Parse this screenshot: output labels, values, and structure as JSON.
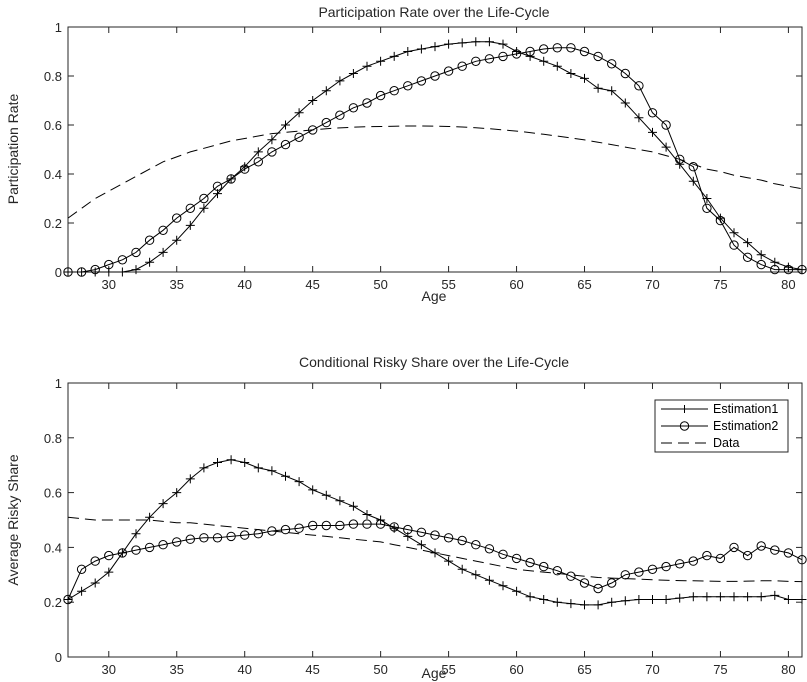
{
  "chart_data": [
    {
      "type": "line",
      "title": "Participation Rate over the Life-Cycle",
      "xlabel": "Age",
      "ylabel": "Participation Rate",
      "xlim": [
        27,
        81
      ],
      "ylim": [
        0,
        1
      ],
      "xticks": [
        30,
        35,
        40,
        45,
        50,
        55,
        60,
        65,
        70,
        75,
        80
      ],
      "yticks": [
        0,
        0.2,
        0.4,
        0.6,
        0.8,
        1
      ],
      "ytick_labels": [
        "0",
        "0.2",
        "0.4",
        "0.6",
        "0.8",
        "1"
      ],
      "legend": null,
      "grid": false,
      "x": [
        27,
        28,
        29,
        30,
        31,
        32,
        33,
        34,
        35,
        36,
        37,
        38,
        39,
        40,
        41,
        42,
        43,
        44,
        45,
        46,
        47,
        48,
        49,
        50,
        51,
        52,
        53,
        54,
        55,
        56,
        57,
        58,
        59,
        60,
        61,
        62,
        63,
        64,
        65,
        66,
        67,
        68,
        69,
        70,
        71,
        72,
        73,
        74,
        75,
        76,
        77,
        78,
        79,
        80,
        81
      ],
      "series": [
        {
          "name": "Estimation1",
          "marker": "plus",
          "style": "solid",
          "values": [
            0.0,
            0.0,
            0.0,
            0.0,
            0.0,
            0.01,
            0.04,
            0.08,
            0.13,
            0.19,
            0.26,
            0.32,
            0.38,
            0.43,
            0.49,
            0.54,
            0.6,
            0.65,
            0.7,
            0.74,
            0.78,
            0.81,
            0.84,
            0.86,
            0.88,
            0.9,
            0.91,
            0.92,
            0.93,
            0.935,
            0.94,
            0.94,
            0.93,
            0.9,
            0.88,
            0.86,
            0.84,
            0.81,
            0.79,
            0.75,
            0.74,
            0.69,
            0.63,
            0.57,
            0.51,
            0.44,
            0.37,
            0.3,
            0.22,
            0.16,
            0.12,
            0.07,
            0.04,
            0.02,
            0.01
          ]
        },
        {
          "name": "Estimation2",
          "marker": "circle",
          "style": "solid",
          "values": [
            0.0,
            0.0,
            0.01,
            0.03,
            0.05,
            0.08,
            0.13,
            0.17,
            0.22,
            0.26,
            0.3,
            0.35,
            0.38,
            0.42,
            0.45,
            0.49,
            0.52,
            0.55,
            0.58,
            0.61,
            0.64,
            0.67,
            0.69,
            0.72,
            0.74,
            0.76,
            0.78,
            0.8,
            0.82,
            0.84,
            0.86,
            0.87,
            0.88,
            0.89,
            0.9,
            0.91,
            0.915,
            0.915,
            0.9,
            0.88,
            0.85,
            0.81,
            0.76,
            0.65,
            0.6,
            0.46,
            0.43,
            0.26,
            0.21,
            0.11,
            0.06,
            0.03,
            0.01,
            0.01,
            0.01
          ]
        },
        {
          "name": "Data",
          "marker": "none",
          "style": "dashed",
          "values": [
            0.22,
            0.26,
            0.3,
            0.33,
            0.36,
            0.39,
            0.42,
            0.45,
            0.47,
            0.49,
            0.505,
            0.52,
            0.535,
            0.545,
            0.555,
            0.565,
            0.57,
            0.575,
            0.58,
            0.585,
            0.588,
            0.591,
            0.593,
            0.594,
            0.595,
            0.596,
            0.596,
            0.595,
            0.594,
            0.592,
            0.589,
            0.585,
            0.58,
            0.575,
            0.569,
            0.562,
            0.555,
            0.547,
            0.539,
            0.53,
            0.52,
            0.51,
            0.5,
            0.49,
            0.475,
            0.46,
            0.44,
            0.42,
            0.41,
            0.395,
            0.385,
            0.375,
            0.36,
            0.35,
            0.34
          ]
        }
      ]
    },
    {
      "type": "line",
      "title": "Conditional Risky Share over the Life-Cycle",
      "xlabel": "Age",
      "ylabel": "Average Risky Share",
      "xlim": [
        27,
        81
      ],
      "ylim": [
        0,
        1
      ],
      "xticks": [
        30,
        35,
        40,
        45,
        50,
        55,
        60,
        65,
        70,
        75,
        80
      ],
      "yticks": [
        0,
        0.2,
        0.4,
        0.6,
        0.8,
        1
      ],
      "ytick_labels": [
        "0",
        "0.2",
        "0.4",
        "0.6",
        "0.8",
        "1"
      ],
      "legend": "top-right",
      "grid": false,
      "x": [
        27,
        28,
        29,
        30,
        31,
        32,
        33,
        34,
        35,
        36,
        37,
        38,
        39,
        40,
        41,
        42,
        43,
        44,
        45,
        46,
        47,
        48,
        49,
        50,
        51,
        52,
        53,
        54,
        55,
        56,
        57,
        58,
        59,
        60,
        61,
        62,
        63,
        64,
        65,
        66,
        67,
        68,
        69,
        70,
        71,
        72,
        73,
        74,
        75,
        76,
        77,
        78,
        79,
        80,
        81
      ],
      "series": [
        {
          "name": "Estimation1",
          "marker": "plus",
          "style": "solid",
          "values": [
            0.21,
            0.24,
            0.27,
            0.31,
            0.38,
            0.45,
            0.51,
            0.56,
            0.6,
            0.65,
            0.69,
            0.71,
            0.72,
            0.71,
            0.69,
            0.68,
            0.66,
            0.64,
            0.61,
            0.59,
            0.57,
            0.55,
            0.52,
            0.5,
            0.47,
            0.44,
            0.41,
            0.38,
            0.35,
            0.32,
            0.3,
            0.28,
            0.26,
            0.24,
            0.22,
            0.21,
            0.2,
            0.195,
            0.19,
            0.19,
            0.2,
            0.205,
            0.21,
            0.21,
            0.21,
            0.215,
            0.22,
            0.22,
            0.22,
            0.22,
            0.22,
            0.22,
            0.225,
            0.21,
            0.21
          ]
        },
        {
          "name": "Estimation2",
          "marker": "circle",
          "style": "solid",
          "values": [
            0.21,
            0.32,
            0.35,
            0.37,
            0.38,
            0.39,
            0.4,
            0.41,
            0.42,
            0.43,
            0.435,
            0.435,
            0.44,
            0.445,
            0.45,
            0.46,
            0.465,
            0.47,
            0.48,
            0.48,
            0.48,
            0.485,
            0.485,
            0.485,
            0.475,
            0.465,
            0.455,
            0.445,
            0.435,
            0.425,
            0.41,
            0.395,
            0.375,
            0.36,
            0.345,
            0.33,
            0.315,
            0.295,
            0.27,
            0.25,
            0.27,
            0.3,
            0.31,
            0.32,
            0.33,
            0.34,
            0.35,
            0.37,
            0.36,
            0.4,
            0.37,
            0.405,
            0.39,
            0.38,
            0.355
          ]
        },
        {
          "name": "Data",
          "marker": "none",
          "style": "dashed",
          "values": [
            0.51,
            0.505,
            0.5,
            0.5,
            0.5,
            0.5,
            0.5,
            0.495,
            0.49,
            0.49,
            0.485,
            0.48,
            0.475,
            0.47,
            0.465,
            0.46,
            0.455,
            0.45,
            0.445,
            0.44,
            0.435,
            0.43,
            0.425,
            0.42,
            0.41,
            0.4,
            0.39,
            0.38,
            0.37,
            0.36,
            0.35,
            0.34,
            0.33,
            0.32,
            0.315,
            0.31,
            0.305,
            0.3,
            0.295,
            0.29,
            0.288,
            0.286,
            0.284,
            0.282,
            0.28,
            0.279,
            0.278,
            0.277,
            0.276,
            0.276,
            0.277,
            0.278,
            0.278,
            0.276,
            0.275
          ]
        }
      ]
    }
  ]
}
